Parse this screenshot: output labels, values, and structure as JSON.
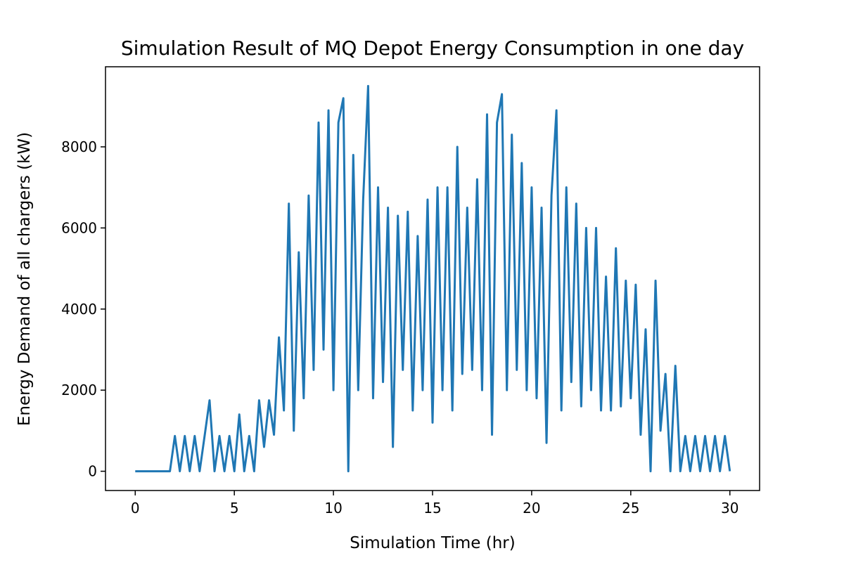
{
  "chart_data": {
    "type": "line",
    "title": "Simulation Result of MQ Depot Energy Consumption in one day",
    "x_label": "Simulation Time (hr)",
    "y_label": "Energy Demand of all chargers (kW)",
    "x": [
      0,
      0.25,
      0.5,
      0.75,
      1,
      1.25,
      1.5,
      1.75,
      2,
      2.25,
      2.5,
      2.75,
      3,
      3.25,
      3.5,
      3.75,
      4,
      4.25,
      4.5,
      4.75,
      5,
      5.25,
      5.5,
      5.75,
      6,
      6.25,
      6.5,
      6.75,
      7,
      7.25,
      7.5,
      7.75,
      8,
      8.25,
      8.5,
      8.75,
      9,
      9.25,
      9.5,
      9.75,
      10,
      10.25,
      10.5,
      10.75,
      11,
      11.25,
      11.5,
      11.75,
      12,
      12.25,
      12.5,
      12.75,
      13,
      13.25,
      13.5,
      13.75,
      14,
      14.25,
      14.5,
      14.75,
      15,
      15.25,
      15.5,
      15.75,
      16,
      16.25,
      16.5,
      16.75,
      17,
      17.25,
      17.5,
      17.75,
      18,
      18.25,
      18.5,
      18.75,
      19,
      19.25,
      19.5,
      19.75,
      20,
      20.25,
      20.5,
      20.75,
      21,
      21.25,
      21.5,
      21.75,
      22,
      22.25,
      22.5,
      22.75,
      23,
      23.25,
      23.5,
      23.75,
      24,
      24.25,
      24.5,
      24.75,
      25,
      25.25,
      25.5,
      25.75,
      26,
      26.25,
      26.5,
      26.75,
      27,
      27.25,
      27.5,
      27.75,
      28,
      28.25,
      28.5,
      28.75,
      29,
      29.25,
      29.5,
      29.75,
      30
    ],
    "series": [
      {
        "name": "Energy Demand",
        "color": "#1f77b4",
        "values": [
          0,
          0,
          0,
          0,
          0,
          0,
          0,
          0,
          870,
          0,
          870,
          0,
          870,
          0,
          870,
          1750,
          0,
          870,
          0,
          870,
          0,
          1400,
          0,
          870,
          0,
          1750,
          600,
          1750,
          900,
          3300,
          1500,
          6600,
          1000,
          5400,
          1800,
          6800,
          2500,
          8600,
          3000,
          8900,
          2000,
          8600,
          9200,
          0,
          7800,
          2000,
          6700,
          9500,
          1800,
          7000,
          2200,
          6500,
          600,
          6300,
          2500,
          6400,
          1500,
          5800,
          2000,
          6700,
          1200,
          7000,
          2000,
          7000,
          1500,
          8000,
          2400,
          6500,
          2500,
          7200,
          2000,
          8800,
          900,
          8600,
          9300,
          2000,
          8300,
          2500,
          7600,
          2000,
          7000,
          1800,
          6500,
          700,
          6800,
          8900,
          1500,
          7000,
          2200,
          6600,
          1600,
          6000,
          2000,
          6000,
          1500,
          4800,
          1500,
          5500,
          1600,
          4700,
          1800,
          4600,
          900,
          3500,
          0,
          4700,
          1000,
          2400,
          0,
          2600,
          0,
          870,
          0,
          870,
          0,
          870,
          0,
          870,
          0,
          870,
          0
        ]
      }
    ],
    "xlim": [
      -1.5,
      31.5
    ],
    "ylim": [
      -475,
      9975
    ],
    "xticks": [
      0,
      5,
      10,
      15,
      20,
      25,
      30
    ],
    "yticks": [
      0,
      2000,
      4000,
      6000,
      8000
    ]
  }
}
